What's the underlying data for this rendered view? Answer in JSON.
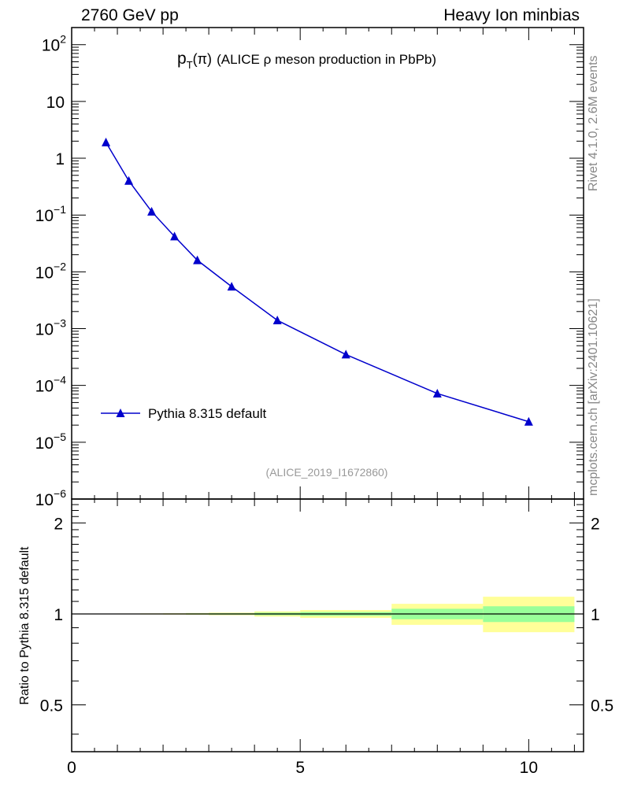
{
  "header": {
    "left": "2760 GeV pp",
    "right": "Heavy Ion minbias"
  },
  "side_labels": {
    "top": "Rivet 4.1.0,  2.6M events",
    "bottom": "mcplots.cern.ch [arXiv:2401.10621]"
  },
  "colors": {
    "series": "#0000cc",
    "band_inner": "#99ff99",
    "band_outer": "#ffff99",
    "watermark": "#999999"
  },
  "chart_data": [
    {
      "type": "line",
      "title": "p_T(π) (ALICE ρ meson production in PbPb)",
      "title_parts": {
        "p": "p",
        "sub": "T",
        "arg": "(π)",
        "rest": "(ALICE ρ meson production in PbPb)"
      },
      "watermark": "(ALICE_2019_I1672860)",
      "yscale": "log",
      "ylim": [
        1e-06,
        200
      ],
      "xlim": [
        0,
        11.2
      ],
      "y_ticks": [
        {
          "v": 100,
          "base": "10",
          "exp": "2"
        },
        {
          "v": 10,
          "base": "10",
          "exp": ""
        },
        {
          "v": 1,
          "base": "1",
          "exp": ""
        },
        {
          "v": 0.1,
          "base": "10",
          "exp": "−1"
        },
        {
          "v": 0.01,
          "base": "10",
          "exp": "−2"
        },
        {
          "v": 0.001,
          "base": "10",
          "exp": "−3"
        },
        {
          "v": 0.0001,
          "base": "10",
          "exp": "−4"
        },
        {
          "v": 1e-05,
          "base": "10",
          "exp": "−5"
        },
        {
          "v": 1e-06,
          "base": "10",
          "exp": "−6"
        }
      ],
      "legend": {
        "label": "Pythia 8.315 default",
        "position": "bottom-left"
      },
      "series": [
        {
          "name": "Pythia 8.315 default",
          "x": [
            0.75,
            1.25,
            1.75,
            2.25,
            2.75,
            3.5,
            4.5,
            6.0,
            8.0,
            10.0
          ],
          "y": [
            1.9,
            0.4,
            0.115,
            0.042,
            0.016,
            0.0055,
            0.0014,
            0.00035,
            7.2e-05,
            2.3e-05
          ]
        }
      ]
    },
    {
      "type": "area",
      "ylabel": "Ratio to Pythia 8.315 default",
      "xlim": [
        0,
        11.2
      ],
      "ylim": [
        0.35,
        2.4
      ],
      "x_ticks": [
        {
          "v": 0,
          "label": "0"
        },
        {
          "v": 5,
          "label": "5"
        },
        {
          "v": 10,
          "label": "10"
        }
      ],
      "y_ticks": [
        {
          "v": 2,
          "label": "2"
        },
        {
          "v": 1,
          "label": "1"
        },
        {
          "v": 0.5,
          "label": "0.5"
        }
      ],
      "reference_line": 1,
      "bands": [
        {
          "x": [
            0.5,
            1.0
          ],
          "inner": [
            0.999,
            1.001
          ],
          "outer": [
            0.998,
            1.002
          ]
        },
        {
          "x": [
            1.0,
            1.5
          ],
          "inner": [
            0.998,
            1.002
          ],
          "outer": [
            0.997,
            1.003
          ]
        },
        {
          "x": [
            1.5,
            2.0
          ],
          "inner": [
            0.998,
            1.002
          ],
          "outer": [
            0.996,
            1.004
          ]
        },
        {
          "x": [
            2.0,
            2.5
          ],
          "inner": [
            0.997,
            1.003
          ],
          "outer": [
            0.995,
            1.005
          ]
        },
        {
          "x": [
            2.5,
            3.0
          ],
          "inner": [
            0.996,
            1.004
          ],
          "outer": [
            0.993,
            1.007
          ]
        },
        {
          "x": [
            3.0,
            4.0
          ],
          "inner": [
            0.995,
            1.005
          ],
          "outer": [
            0.99,
            1.01
          ]
        },
        {
          "x": [
            4.0,
            5.0
          ],
          "inner": [
            0.99,
            1.01
          ],
          "outer": [
            0.98,
            1.02
          ]
        },
        {
          "x": [
            5.0,
            7.0
          ],
          "inner": [
            0.985,
            1.015
          ],
          "outer": [
            0.97,
            1.03
          ]
        },
        {
          "x": [
            7.0,
            9.0
          ],
          "inner": [
            0.96,
            1.04
          ],
          "outer": [
            0.92,
            1.08
          ]
        },
        {
          "x": [
            9.0,
            11.0
          ],
          "inner": [
            0.94,
            1.06
          ],
          "outer": [
            0.87,
            1.14
          ]
        }
      ]
    }
  ]
}
